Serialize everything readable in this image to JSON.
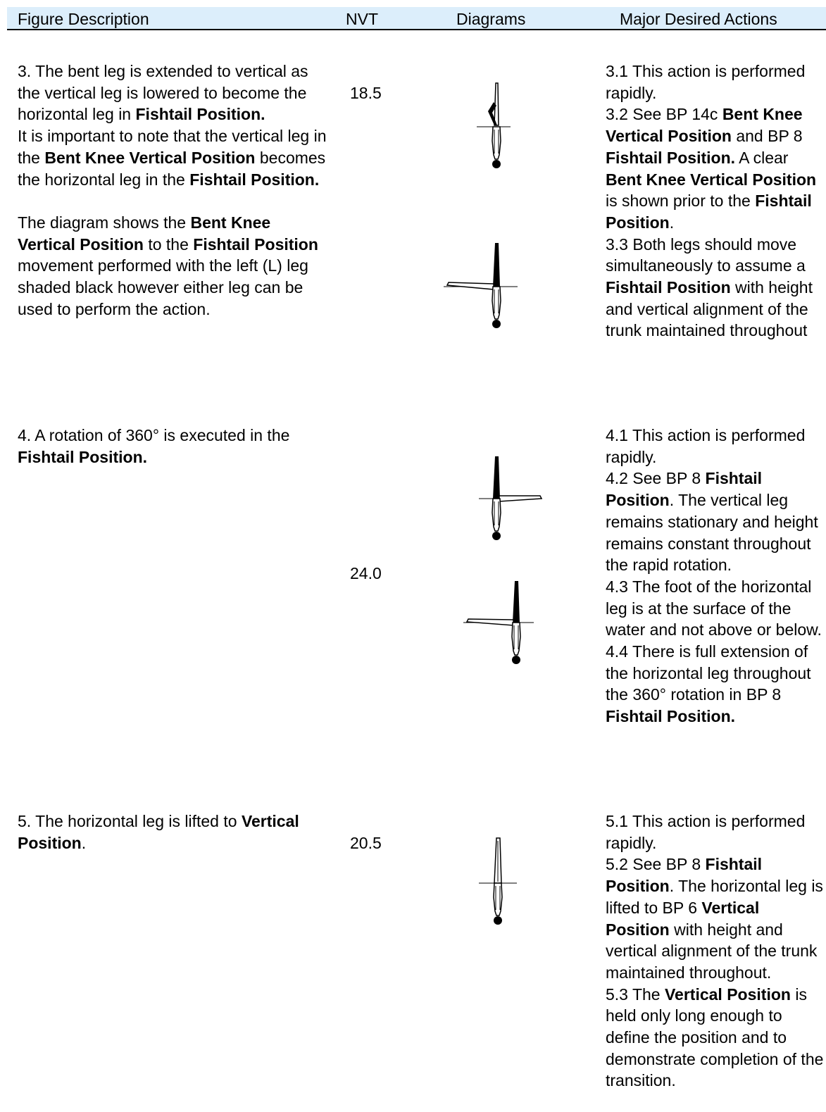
{
  "header": {
    "columns": [
      "Figure Description",
      "NVT",
      "Diagrams",
      "Major Desired Actions"
    ]
  },
  "rows": [
    {
      "description": [
        [
          [
            {
              "text": "3. The bent leg is extended to vertical as the vertical leg is lowered to become the horizontal leg in "
            },
            {
              "text": "Fishtail Position.",
              "bold": true
            }
          ],
          [
            {
              "text": "It is important to note that the vertical leg in the "
            },
            {
              "text": "Bent Knee Vertical Position",
              "bold": true
            },
            {
              "text": " becomes the horizontal leg in the "
            },
            {
              "text": "Fishtail Position.",
              "bold": true
            }
          ]
        ],
        [
          [
            {
              "text": "The diagram shows the "
            },
            {
              "text": "Bent Knee Vertical Position",
              "bold": true
            },
            {
              "text": " to the "
            },
            {
              "text": "Fishtail Position",
              "bold": true
            },
            {
              "text": " movement performed with the left (L) leg shaded black however either leg can be used to perform the action."
            }
          ]
        ]
      ],
      "nvt": "18.5",
      "actions": [
        [
          {
            "text": "3.1 This action is performed rapidly."
          }
        ],
        [
          {
            "text": "3.2 See BP 14c "
          },
          {
            "text": "Bent Knee Vertical Position",
            "bold": true
          },
          {
            "text": " and BP 8 "
          },
          {
            "text": "Fishtail Position.",
            "bold": true
          },
          {
            "text": "  A clear "
          },
          {
            "text": "Bent Knee Vertical Position",
            "bold": true
          },
          {
            "text": " is shown prior to the "
          },
          {
            "text": "Fishtail Position",
            "bold": true
          },
          {
            "text": "."
          }
        ],
        [
          {
            "text": "3.3 Both legs should move simultaneously to assume a "
          },
          {
            "text": "Fishtail Position",
            "bold": true
          },
          {
            "text": " with height and vertical alignment of the trunk maintained throughout"
          }
        ]
      ]
    },
    {
      "description": [
        [
          [
            {
              "text": "4. A rotation of 360° is executed in the "
            },
            {
              "text": "Fishtail Position.",
              "bold": true
            }
          ]
        ]
      ],
      "nvt": "24.0",
      "actions": [
        [
          {
            "text": "4.1 This action is performed rapidly."
          }
        ],
        [
          {
            "text": "4.2 See BP 8 "
          },
          {
            "text": "Fishtail Position",
            "bold": true
          },
          {
            "text": ". The vertical leg remains stationary and height remains constant throughout the rapid rotation."
          }
        ],
        [
          {
            "text": "4.3 The foot of the horizontal leg is at the surface of the water and not above or below."
          }
        ],
        [
          {
            "text": "4.4 There is full extension of the horizontal leg throughout the 360° rotation in BP 8 "
          },
          {
            "text": "Fishtail Position.",
            "bold": true
          }
        ]
      ]
    },
    {
      "description": [
        [
          [
            {
              "text": "5. The horizontal leg is lifted to "
            },
            {
              "text": "Vertical Position",
              "bold": true
            },
            {
              "text": "."
            }
          ]
        ]
      ],
      "nvt": "20.5",
      "actions": [
        [
          {
            "text": "5.1 This action is performed rapidly."
          }
        ],
        [
          {
            "text": "5.2 See BP 8 "
          },
          {
            "text": "Fishtail Position",
            "bold": true
          },
          {
            "text": ". The horizontal leg is lifted to BP 6 "
          },
          {
            "text": "Vertical Position",
            "bold": true
          },
          {
            "text": " with height and vertical alignment of the trunk maintained throughout."
          }
        ],
        [
          {
            "text": "5.3 The "
          },
          {
            "text": "Vertical Position",
            "bold": true
          },
          {
            "text": " is held only long enough to define the position and to demonstrate completion of the transition."
          }
        ]
      ]
    }
  ]
}
